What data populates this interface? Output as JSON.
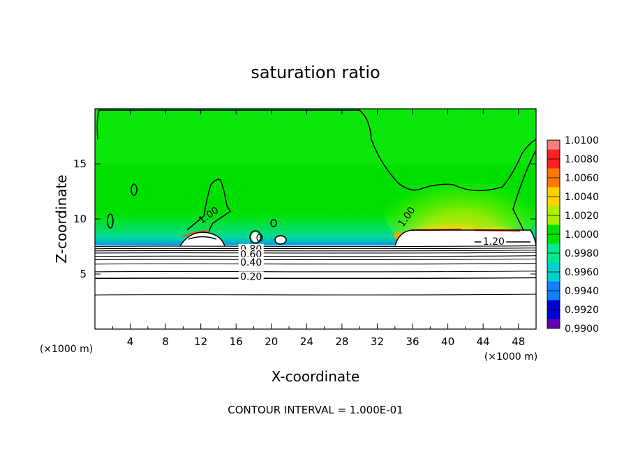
{
  "chart_data": {
    "type": "heatmap",
    "title": "saturation ratio",
    "xlabel": "X-coordinate",
    "ylabel": "Z-coordinate",
    "x_unit": "(×1000 m)",
    "xlim": [
      0,
      50
    ],
    "ylim": [
      0,
      20
    ],
    "x_ticks": [
      "4",
      "8",
      "12",
      "16",
      "20",
      "24",
      "28",
      "32",
      "36",
      "40",
      "44",
      "48"
    ],
    "x_tick_values": [
      4,
      8,
      12,
      16,
      20,
      24,
      28,
      32,
      36,
      40,
      44,
      48
    ],
    "y_ticks": [
      "5",
      "10",
      "15"
    ],
    "y_tick_values": [
      5,
      10,
      15
    ],
    "colorbar": {
      "labels": [
        "1.0100",
        "1.0080",
        "1.0060",
        "1.0040",
        "1.0020",
        "1.0000",
        "0.9980",
        "0.9960",
        "0.9940",
        "0.9920",
        "0.9900"
      ],
      "levels": [
        1.01,
        1.008,
        1.006,
        1.004,
        1.002,
        1.0,
        0.998,
        0.996,
        0.994,
        0.992,
        0.99
      ],
      "colors": [
        "#f08080",
        "#ff2020",
        "#ff7800",
        "#ffd000",
        "#a8f000",
        "#00e000",
        "#00e890",
        "#00d0d0",
        "#1080ff",
        "#0000d0",
        "#6000b0"
      ]
    },
    "contour_labels": [
      {
        "text": "1.00",
        "x": 13.0,
        "z": 10.2
      },
      {
        "text": "1.00",
        "x": 35.5,
        "z": 10.1
      },
      {
        "text": "1.20",
        "x": 45.2,
        "z": 7.8
      },
      {
        "text": "0.80",
        "x": 17.7,
        "z": 7.1
      },
      {
        "text": "0.60",
        "x": 17.7,
        "z": 6.6
      },
      {
        "text": "0.40",
        "x": 17.7,
        "z": 5.9
      },
      {
        "text": "0.20",
        "x": 17.7,
        "z": 4.6
      }
    ],
    "stable_layer_levels_z": [
      3.1,
      4.6,
      5.2,
      5.9,
      6.3,
      6.6,
      6.9,
      7.1,
      7.3,
      7.5
    ]
  },
  "contour_interval": "CONTOUR INTERVAL = 1.000E-01"
}
